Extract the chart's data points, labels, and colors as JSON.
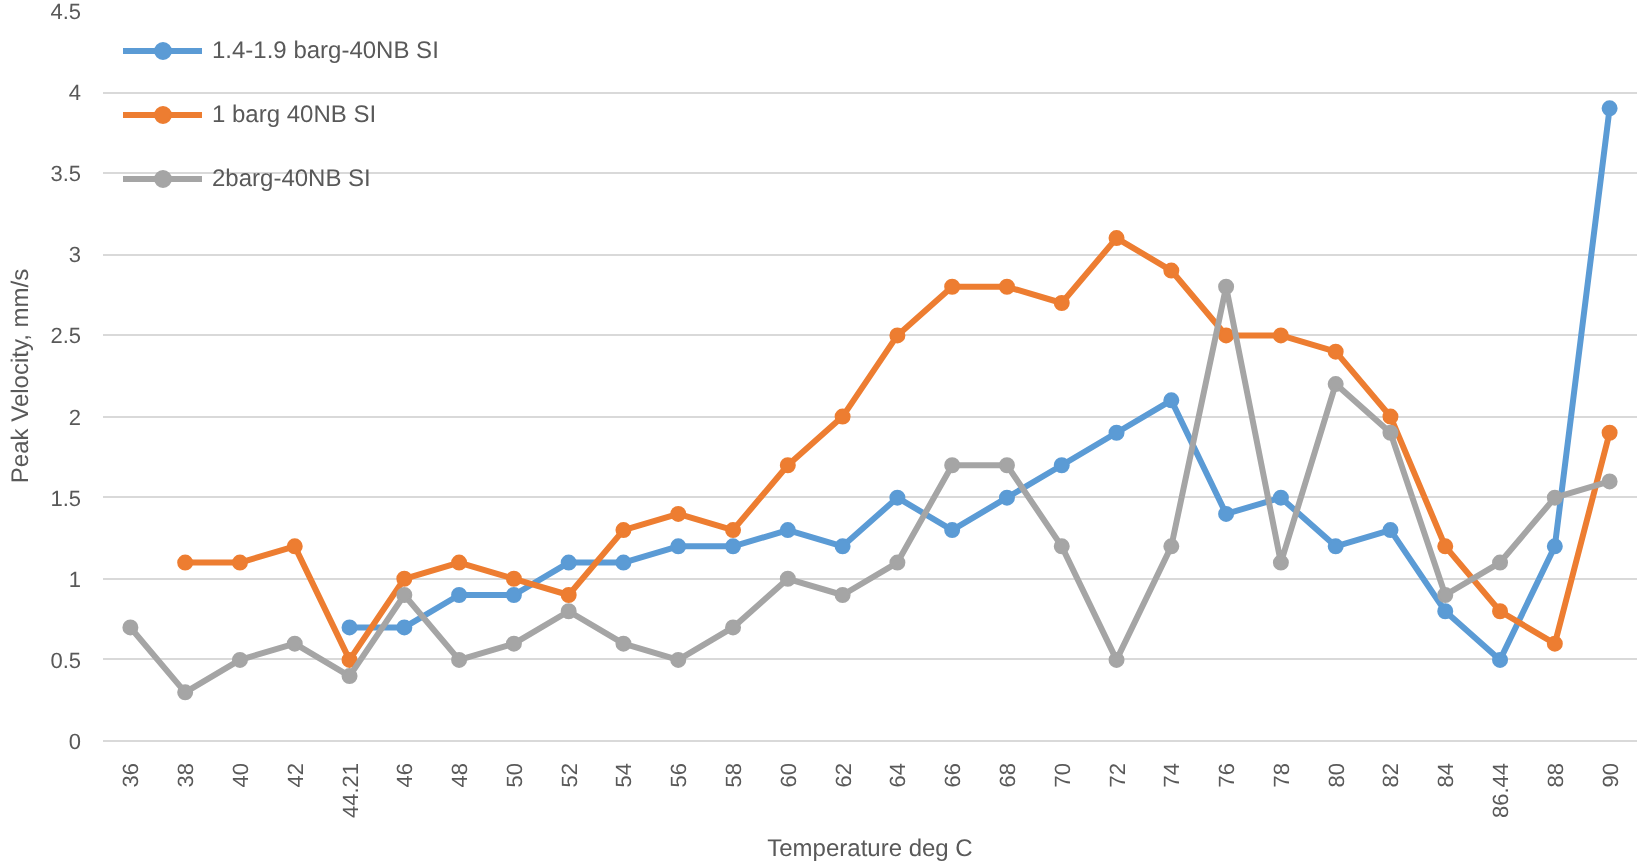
{
  "chart_data": {
    "type": "line",
    "xlabel": "Temperature deg C",
    "ylabel": "Peak Velocity, mm/s",
    "categories": [
      "36",
      "38",
      "40",
      "42",
      "44.21",
      "46",
      "48",
      "50",
      "52",
      "54",
      "56",
      "58",
      "60",
      "62",
      "64",
      "66",
      "68",
      "70",
      "72",
      "74",
      "76",
      "78",
      "80",
      "82",
      "84",
      "86.44",
      "88",
      "90"
    ],
    "series": [
      {
        "name": "1.4-1.9 barg-40NB SI",
        "color": "#5b9bd5",
        "values": [
          null,
          null,
          null,
          null,
          0.7,
          0.7,
          0.9,
          0.9,
          1.1,
          1.1,
          1.2,
          1.2,
          1.3,
          1.2,
          1.5,
          1.3,
          1.5,
          1.7,
          1.9,
          2.1,
          1.4,
          1.5,
          1.2,
          1.3,
          0.8,
          0.5,
          1.2,
          3.9
        ]
      },
      {
        "name": "1 barg 40NB SI",
        "color": "#ed7d31",
        "values": [
          null,
          1.1,
          1.1,
          1.2,
          0.5,
          1.0,
          1.1,
          1.0,
          0.9,
          1.3,
          1.4,
          1.3,
          1.7,
          2.0,
          2.5,
          2.8,
          2.8,
          2.7,
          3.1,
          2.9,
          2.5,
          2.5,
          2.4,
          2.0,
          1.2,
          0.8,
          0.6,
          1.9
        ]
      },
      {
        "name": "2barg-40NB SI",
        "color": "#a5a5a5",
        "values": [
          0.7,
          0.3,
          0.5,
          0.6,
          0.4,
          0.9,
          0.5,
          0.6,
          0.8,
          0.6,
          0.5,
          0.7,
          1.0,
          0.9,
          1.1,
          1.7,
          1.7,
          1.2,
          0.5,
          1.2,
          2.8,
          1.1,
          2.2,
          1.9,
          0.9,
          1.1,
          1.5,
          1.6
        ]
      }
    ],
    "ylim": [
      0,
      4.5
    ],
    "yticks": [
      0,
      0.5,
      1,
      1.5,
      2,
      2.5,
      3,
      3.5,
      4,
      4.5
    ],
    "grid": "y",
    "legend": "top left",
    "marker": "circle",
    "line_style": "solid"
  }
}
